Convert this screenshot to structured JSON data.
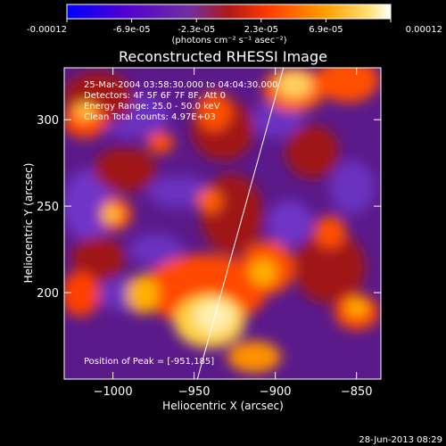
{
  "colorbar": {
    "tick_labels": [
      "-0.00012",
      "-6.9e-05",
      "-2.3e-05",
      "2.3e-05",
      "6.9e-05",
      "0.00012"
    ],
    "unit_label": "(photons cm⁻² s⁻¹ asec⁻²)",
    "colors": [
      "#0000ff",
      "#5a00c8",
      "#7a2aa6",
      "#b81c1c",
      "#ff4000",
      "#ffb000",
      "#ffffff"
    ]
  },
  "chart_data": {
    "type": "heatmap",
    "title": "Reconstructed RHESSI Image",
    "xlabel": "Heliocentric X (arcsec)",
    "ylabel": "Heliocentric Y (arcsec)",
    "xlim": [
      -1030,
      -835
    ],
    "ylim": [
      150,
      330
    ],
    "x_ticks": [
      {
        "value": -1000,
        "label": "−1000"
      },
      {
        "value": -950,
        "label": "−950"
      },
      {
        "value": -900,
        "label": "−900"
      },
      {
        "value": -850,
        "label": "−850"
      }
    ],
    "y_ticks": [
      {
        "value": 200,
        "label": "200"
      },
      {
        "value": 250,
        "label": "250"
      },
      {
        "value": 300,
        "label": "300"
      }
    ],
    "annotations": [
      "25-Mar-2004 03:58:30.000 to 04:04:30.000",
      "Detectors: 4F 5F 6F 7F 8F, Att 0",
      "Energy Range: 25.0 - 50.0 keV",
      "Clean    Total counts: 4.97E+03"
    ],
    "peak": {
      "label": "Position of Peak = [-951,185]",
      "x": -951,
      "y": 185
    },
    "limb_line": {
      "x1": -948,
      "y1": 150,
      "x2": -895,
      "y2": 330
    }
  },
  "footer_timestamp": "28-Jun-2013 08:29"
}
